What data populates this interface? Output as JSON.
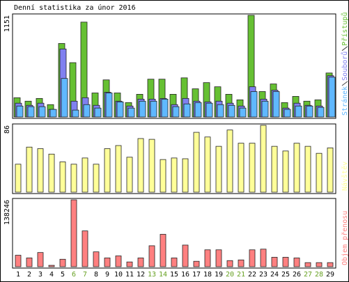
{
  "title": "Denní statistika za únor 2016",
  "chart_data": [
    {
      "type": "bar",
      "ylim": [
        0,
        1151
      ],
      "yticks": [
        1151
      ],
      "series": [
        {
          "name": "Přístupů",
          "color": "#66c033",
          "values": [
            218,
            179,
            210,
            140,
            832,
            615,
            1074,
            272,
            420,
            272,
            163,
            257,
            428,
            428,
            257,
            443,
            319,
            389,
            342,
            257,
            194,
            1151,
            288,
            374,
            163,
            233,
            179,
            194,
            498
          ]
        },
        {
          "name": "Souborů",
          "color": "#8080f0",
          "values": [
            156,
            132,
            156,
            86,
            770,
            179,
            218,
            132,
            280,
            179,
            124,
            202,
            202,
            210,
            140,
            210,
            179,
            171,
            179,
            156,
            124,
            342,
            202,
            303,
            101,
            156,
            132,
            124,
            467
          ]
        },
        {
          "name": "Stránek",
          "color": "#60b8ff",
          "values": [
            124,
            117,
            117,
            86,
            436,
            78,
            140,
            101,
            272,
            171,
            101,
            179,
            179,
            202,
            117,
            148,
            163,
            156,
            140,
            132,
            101,
            288,
            179,
            288,
            86,
            124,
            124,
            109,
            451
          ]
        }
      ]
    },
    {
      "type": "bar",
      "ylim": [
        0,
        86
      ],
      "yticks": [
        86
      ],
      "series": [
        {
          "name": "Návštěv",
          "color": "#ffff99",
          "values": [
            36,
            58,
            56,
            49,
            39,
            36,
            44,
            36,
            56,
            60,
            45,
            69,
            68,
            42,
            44,
            43,
            77,
            71,
            59,
            80,
            63,
            63,
            86,
            59,
            53,
            63,
            59,
            50,
            57
          ]
        }
      ]
    },
    {
      "type": "bar",
      "ylim": [
        0,
        138246
      ],
      "yticks": [
        138246
      ],
      "series": [
        {
          "name": "Objem přenosu",
          "color": "#ff8080",
          "values": [
            23700,
            18100,
            29300,
            2800,
            15400,
            138246,
            74000,
            30700,
            18100,
            22300,
            9800,
            18100,
            43300,
            67000,
            18100,
            44700,
            11200,
            34900,
            34900,
            12600,
            14000,
            34900,
            36300,
            19500,
            19500,
            18100,
            8400,
            8400,
            8400
          ]
        }
      ],
      "categories": [
        "1",
        "2",
        "3",
        "4",
        "5",
        "6",
        "7",
        "8",
        "9",
        "10",
        "11",
        "12",
        "13",
        "14",
        "15",
        "16",
        "17",
        "18",
        "19",
        "20",
        "21",
        "22",
        "23",
        "24",
        "25",
        "26",
        "27",
        "28",
        "29"
      ],
      "category_colors": [
        "#000",
        "#000",
        "#000",
        "#000",
        "#000",
        "#66a020",
        "#66a020",
        "#000",
        "#000",
        "#000",
        "#000",
        "#000",
        "#66a020",
        "#66a020",
        "#000",
        "#000",
        "#000",
        "#000",
        "#000",
        "#66a020",
        "#66a020",
        "#000",
        "#000",
        "#000",
        "#000",
        "#000",
        "#66a020",
        "#66a020",
        "#000"
      ]
    }
  ]
}
